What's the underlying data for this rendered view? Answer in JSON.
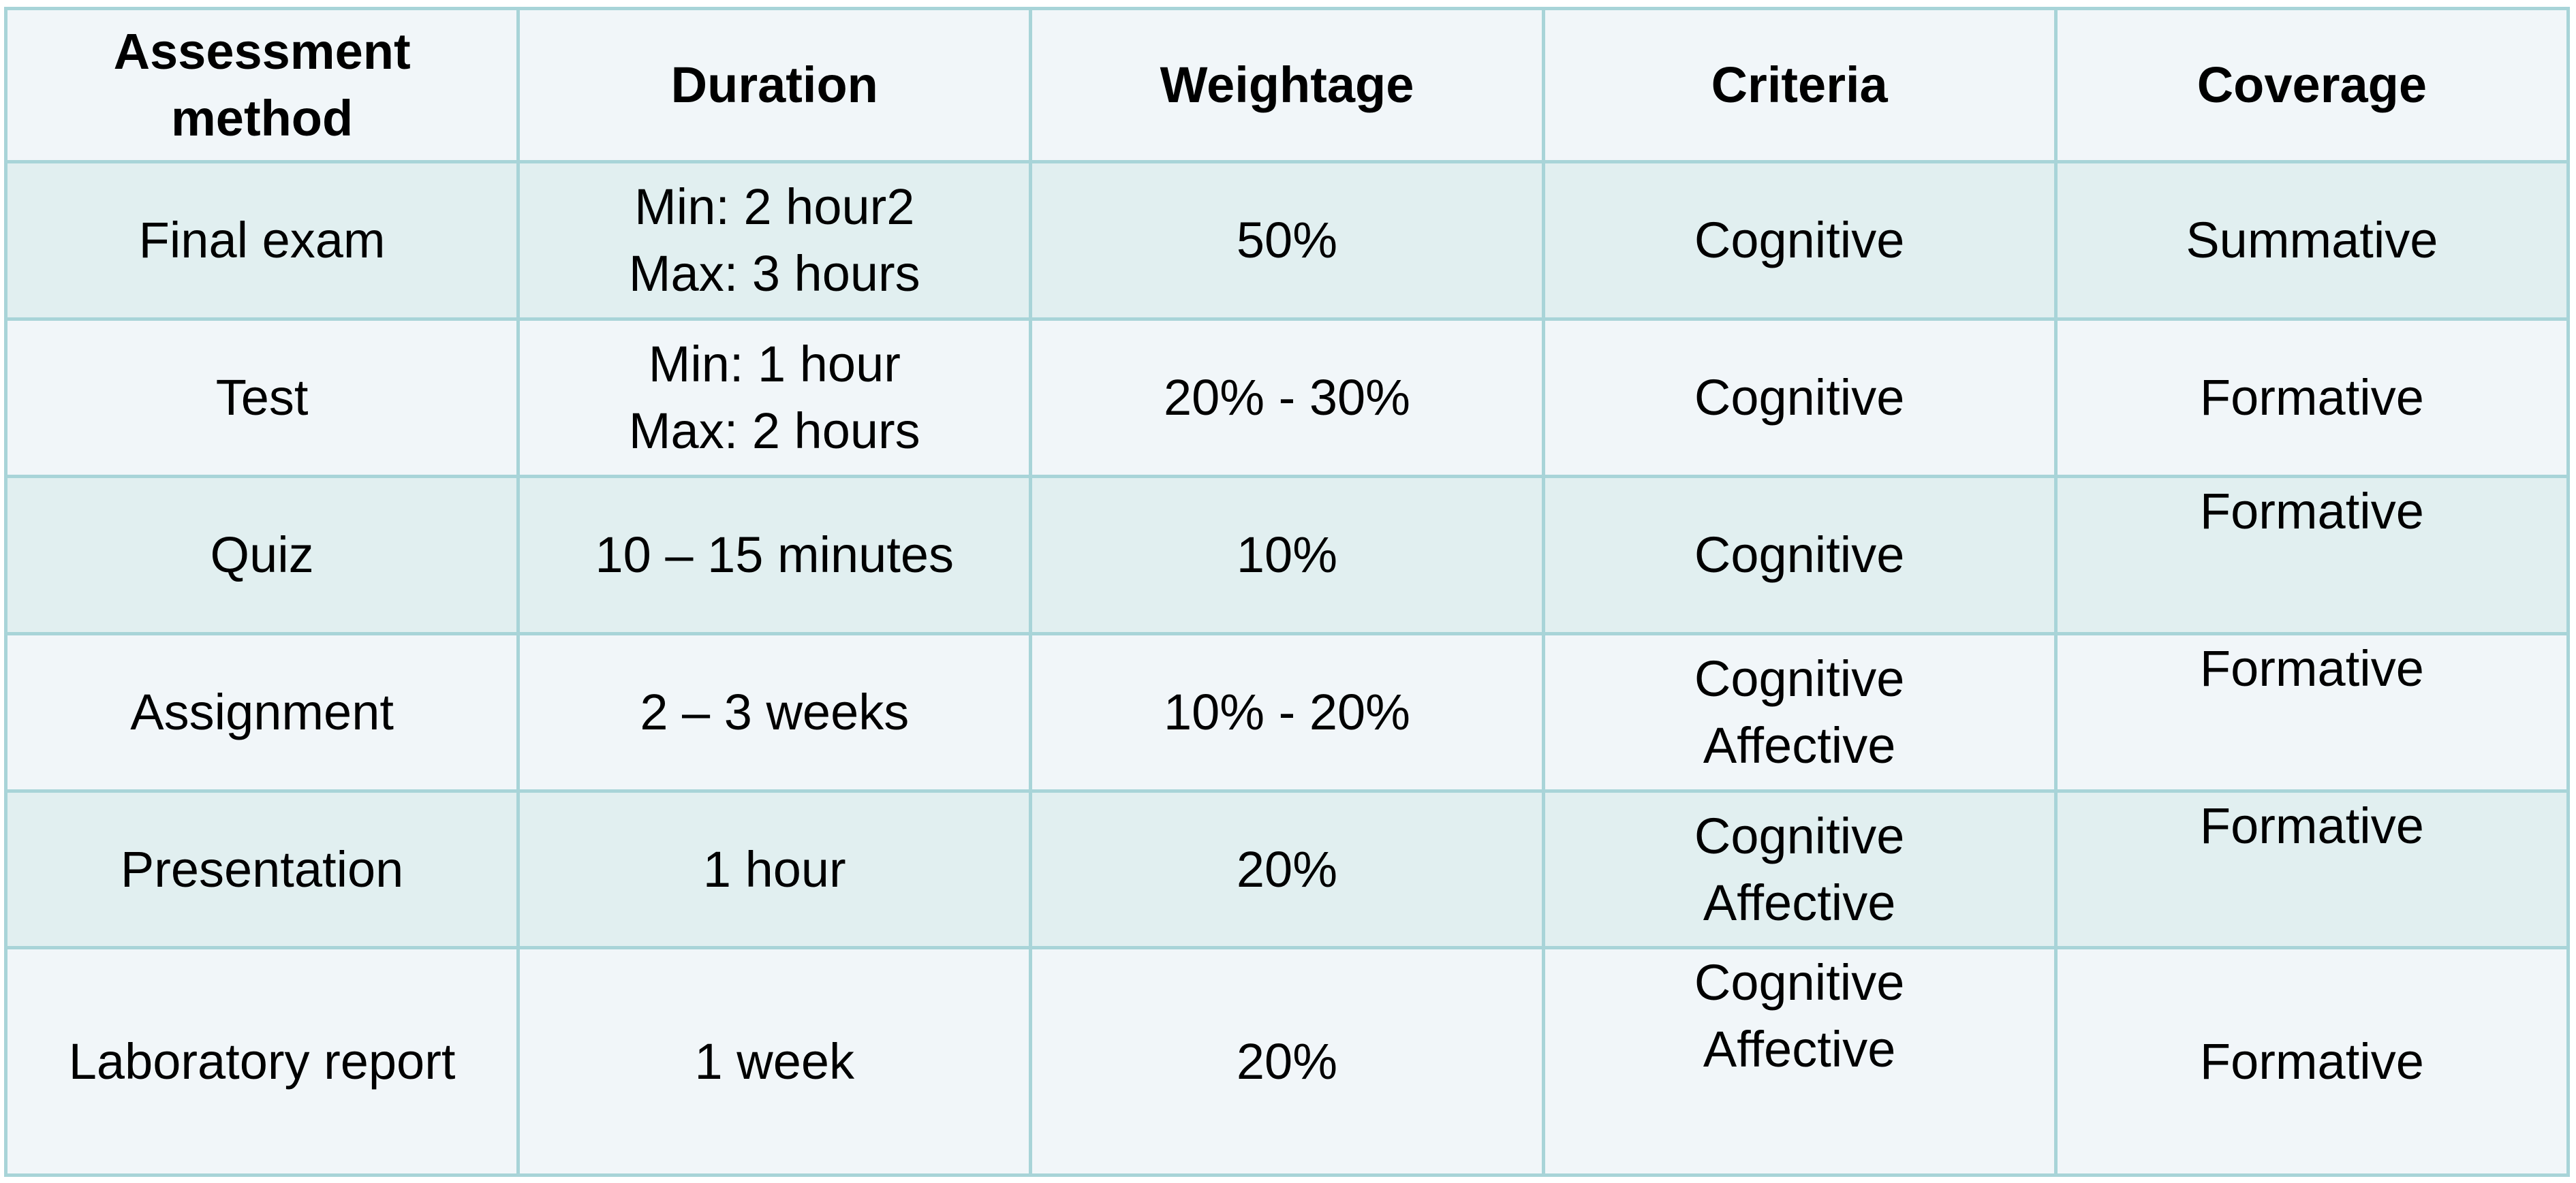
{
  "table": {
    "headers": [
      [
        "Assessment",
        "method"
      ],
      [
        "Duration"
      ],
      [
        "Weightage"
      ],
      [
        "Criteria"
      ],
      [
        "Coverage"
      ]
    ],
    "rows": [
      {
        "method": [
          "Final exam"
        ],
        "duration": [
          "Min: 2 hour2",
          "Max: 3 hours"
        ],
        "weightage": [
          "50%"
        ],
        "criteria": [
          "Cognitive"
        ],
        "coverage": [
          "Summative"
        ]
      },
      {
        "method": [
          "Test"
        ],
        "duration": [
          "Min: 1 hour",
          "Max: 2 hours"
        ],
        "weightage": [
          "20% - 30%"
        ],
        "criteria": [
          "Cognitive"
        ],
        "coverage": [
          "Formative"
        ]
      },
      {
        "method": [
          "Quiz"
        ],
        "duration": [
          "10 – 15 minutes"
        ],
        "weightage": [
          "10%"
        ],
        "criteria": [
          "Cognitive"
        ],
        "coverage": [
          "Formative"
        ]
      },
      {
        "method": [
          "Assignment"
        ],
        "duration": [
          "2 – 3 weeks"
        ],
        "weightage": [
          "10% - 20%"
        ],
        "criteria": [
          "Cognitive",
          "Affective"
        ],
        "coverage": [
          "Formative"
        ]
      },
      {
        "method": [
          "Presentation"
        ],
        "duration": [
          "1 hour"
        ],
        "weightage": [
          "20%"
        ],
        "criteria": [
          "Cognitive",
          "Affective"
        ],
        "coverage": [
          "Formative"
        ]
      },
      {
        "method": [
          "Laboratory report"
        ],
        "duration": [
          "1 week"
        ],
        "weightage": [
          "20%"
        ],
        "criteria": [
          "Cognitive",
          "Affective"
        ],
        "coverage": [
          "Formative"
        ]
      }
    ]
  }
}
